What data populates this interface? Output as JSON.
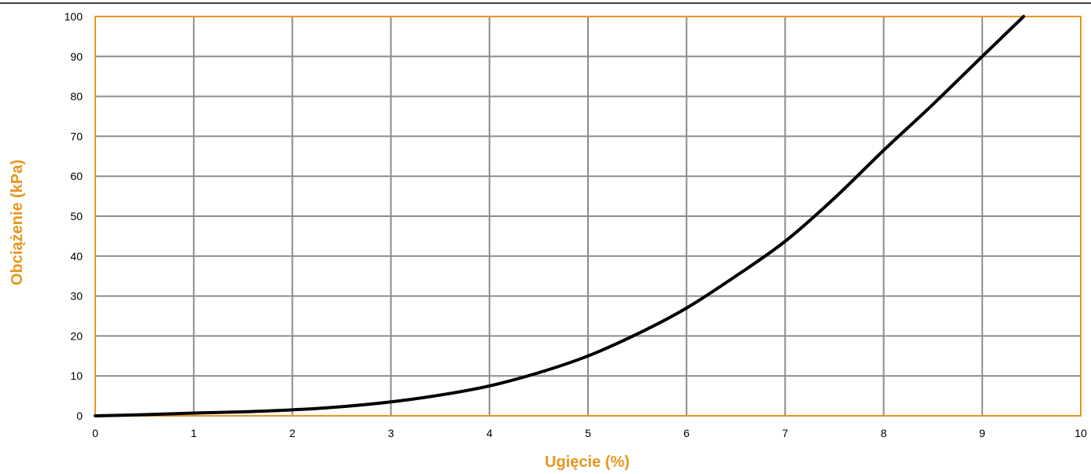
{
  "chart_data": {
    "type": "line",
    "title": "",
    "xlabel": "Ugięcie (%)",
    "ylabel": "Obciążenie (kPa)",
    "xlim": [
      0,
      10
    ],
    "ylim": [
      0,
      100
    ],
    "xticks": [
      "0",
      "1",
      "2",
      "3",
      "4",
      "5",
      "6",
      "7",
      "8",
      "9",
      "10"
    ],
    "yticks": [
      "0",
      "10",
      "20",
      "30",
      "40",
      "50",
      "60",
      "70",
      "80",
      "90",
      "100"
    ],
    "grid": true,
    "legend": "none",
    "series": [
      {
        "x": [
          0,
          0.5,
          1,
          1.5,
          2,
          2.5,
          3,
          3.5,
          4,
          4.5,
          5,
          5.5,
          6,
          6.5,
          7,
          7.5,
          8,
          8.5,
          9,
          9.42
        ],
        "y": [
          0,
          0.3,
          0.7,
          1.0,
          1.5,
          2.3,
          3.5,
          5.2,
          7.5,
          10.8,
          15,
          20.5,
          27,
          35,
          43.7,
          54.5,
          66.5,
          78,
          90,
          100
        ]
      }
    ],
    "colors": {
      "line": "#000000",
      "grid": "#8c8c8c",
      "frame": "#e8961e",
      "axis_title": "#e8961e",
      "top_rule": "#000000"
    }
  }
}
